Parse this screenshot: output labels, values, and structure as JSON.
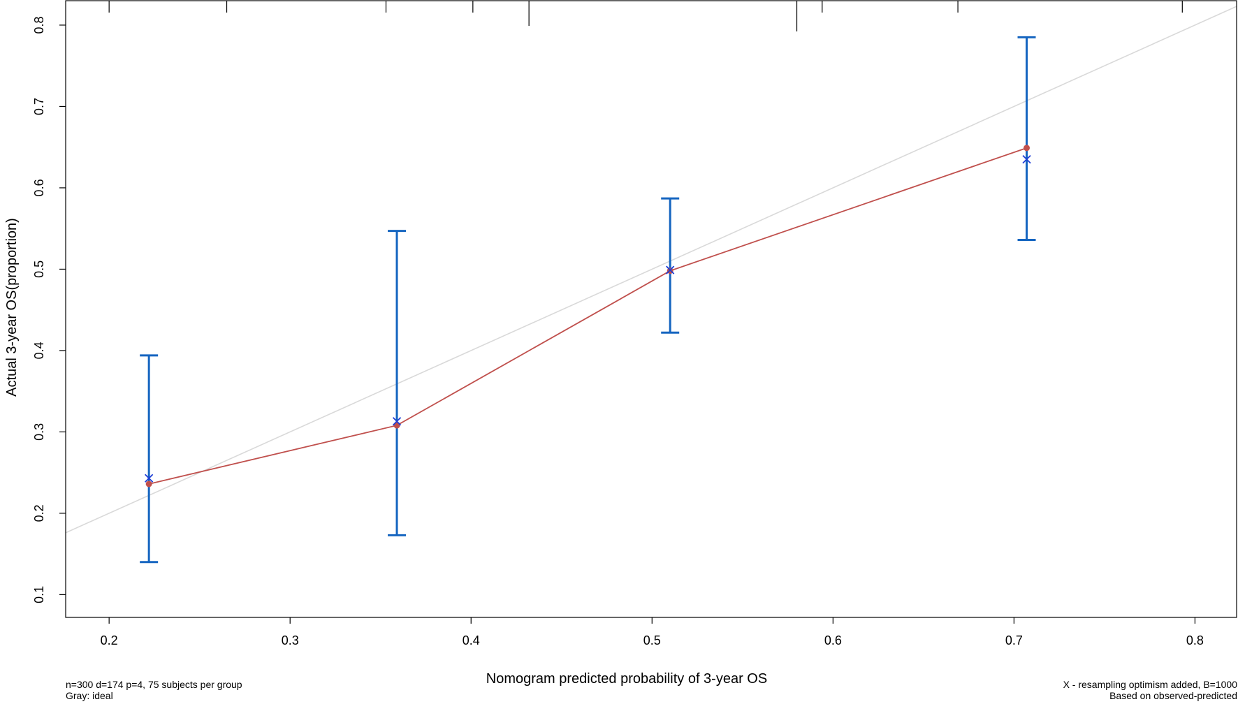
{
  "chart_data": {
    "type": "scatter",
    "xlabel": "Nomogram predicted probability of 3-year OS",
    "ylabel": "Actual 3-year OS(proportion)",
    "xlim": [
      0.176,
      0.823
    ],
    "ylim": [
      0.072,
      0.83
    ],
    "x_ticks": [
      0.2,
      0.3,
      0.4,
      0.5,
      0.6,
      0.7,
      0.8
    ],
    "y_ticks": [
      0.1,
      0.2,
      0.3,
      0.4,
      0.5,
      0.6,
      0.7,
      0.8
    ],
    "ideal_line": {
      "label": "Gray: ideal",
      "color": "#d9d9d9"
    },
    "apparent_series": {
      "color": "#c0504d",
      "x": [
        0.222,
        0.359,
        0.51,
        0.707
      ],
      "y": [
        0.236,
        0.308,
        0.498,
        0.649
      ]
    },
    "bias_corrected_series": {
      "color": "#1f3fd6",
      "x": [
        0.222,
        0.359,
        0.51,
        0.707
      ],
      "y": [
        0.243,
        0.313,
        0.499,
        0.635
      ]
    },
    "error_bars": {
      "color": "#1565c0",
      "x": [
        0.222,
        0.359,
        0.51,
        0.707
      ],
      "lower": [
        0.14,
        0.173,
        0.422,
        0.536
      ],
      "upper": [
        0.394,
        0.547,
        0.587,
        0.785
      ]
    },
    "top_ticks": [
      {
        "x": 0.2,
        "len": "short"
      },
      {
        "x": 0.265,
        "len": "short"
      },
      {
        "x": 0.353,
        "len": "short"
      },
      {
        "x": 0.401,
        "len": "short"
      },
      {
        "x": 0.432,
        "len": "long"
      },
      {
        "x": 0.58,
        "len": "long"
      },
      {
        "x": 0.594,
        "len": "short"
      },
      {
        "x": 0.669,
        "len": "short"
      },
      {
        "x": 0.793,
        "len": "short"
      }
    ]
  },
  "footer": {
    "left_line1": "n=300 d=174 p=4, 75 subjects per group",
    "left_line2": "Gray: ideal",
    "right_line1": "X - resampling optimism added, B=1000",
    "right_line2": "Based on observed-predicted"
  }
}
